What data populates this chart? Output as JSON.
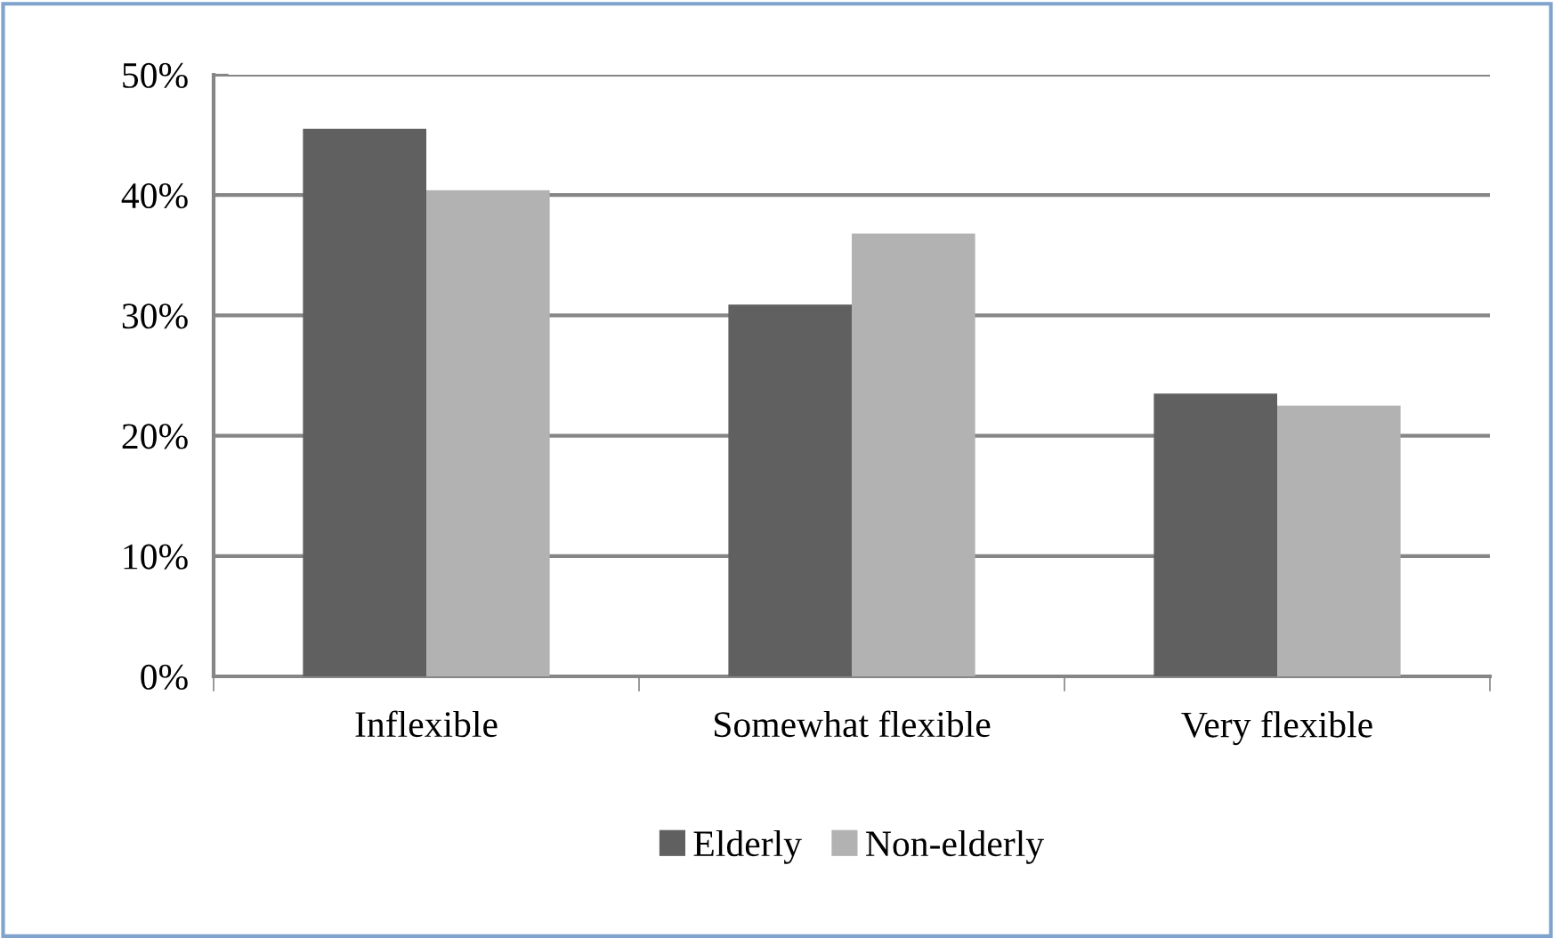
{
  "chart_data": {
    "type": "bar",
    "categories": [
      "Inflexible",
      "Somewhat flexible",
      "Very flexible"
    ],
    "series": [
      {
        "name": "Elderly",
        "color": "#606060",
        "values": [
          45.5,
          30.9,
          23.5
        ]
      },
      {
        "name": "Non-elderly",
        "color": "#b2b2b2",
        "values": [
          40.4,
          36.8,
          22.5
        ]
      }
    ],
    "ylim": [
      0,
      50
    ],
    "yticks": [
      {
        "value": 0,
        "label": "0%"
      },
      {
        "value": 10,
        "label": "10%"
      },
      {
        "value": 20,
        "label": "20%"
      },
      {
        "value": 30,
        "label": "30%"
      },
      {
        "value": 40,
        "label": "40%"
      },
      {
        "value": 50,
        "label": "50%"
      }
    ],
    "grid": "y",
    "legend": "bottom"
  }
}
